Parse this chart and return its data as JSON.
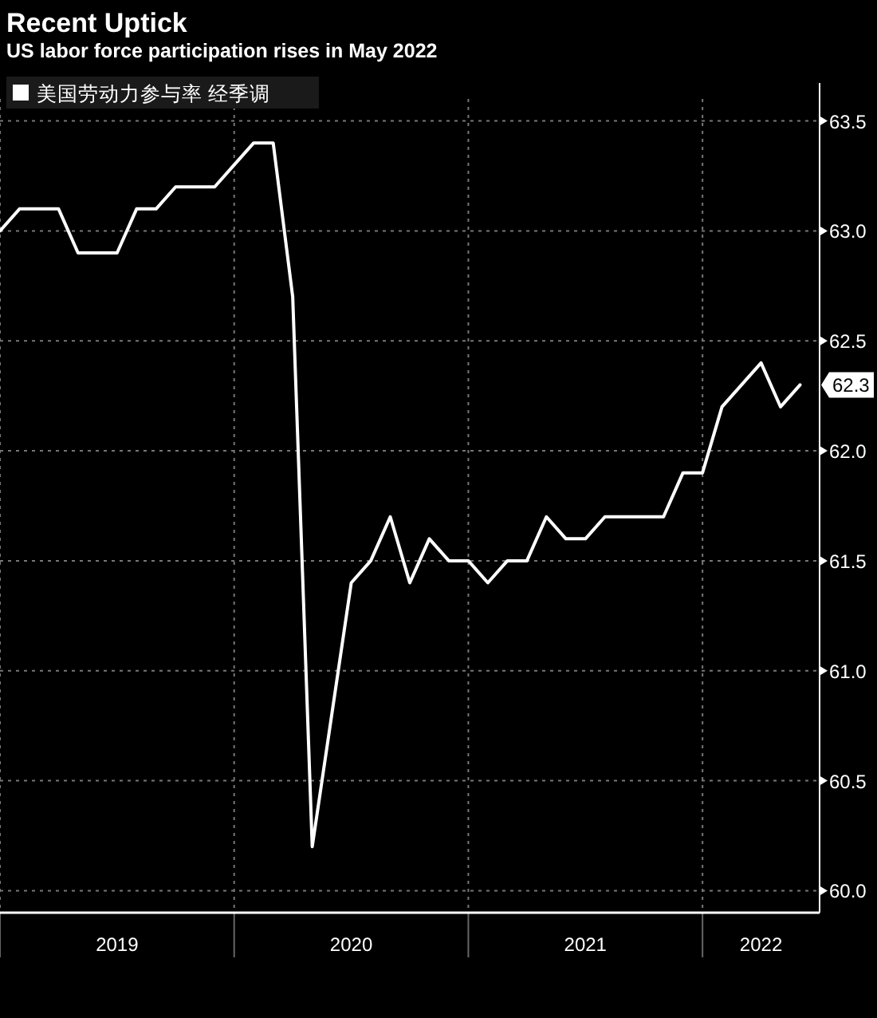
{
  "chart_data": {
    "type": "line",
    "title": "Recent Uptick",
    "subtitle": "US labor force participation rises in May 2022",
    "x": [
      "2018-12",
      "2019-01",
      "2019-02",
      "2019-03",
      "2019-04",
      "2019-05",
      "2019-06",
      "2019-07",
      "2019-08",
      "2019-09",
      "2019-10",
      "2019-11",
      "2019-12",
      "2020-01",
      "2020-02",
      "2020-03",
      "2020-04",
      "2020-05",
      "2020-06",
      "2020-07",
      "2020-08",
      "2020-09",
      "2020-10",
      "2020-11",
      "2020-12",
      "2021-01",
      "2021-02",
      "2021-03",
      "2021-04",
      "2021-05",
      "2021-06",
      "2021-07",
      "2021-08",
      "2021-09",
      "2021-10",
      "2021-11",
      "2021-12",
      "2022-01",
      "2022-02",
      "2022-03",
      "2022-04",
      "2022-05"
    ],
    "series": [
      {
        "name": "美国劳动力参与率 经季调",
        "color": "#ffffff",
        "values": [
          63.0,
          63.1,
          63.1,
          63.1,
          62.9,
          62.9,
          62.9,
          63.1,
          63.1,
          63.2,
          63.2,
          63.2,
          63.3,
          63.4,
          63.4,
          62.7,
          60.2,
          60.8,
          61.4,
          61.5,
          61.7,
          61.4,
          61.6,
          61.5,
          61.5,
          61.4,
          61.5,
          61.5,
          61.7,
          61.6,
          61.6,
          61.7,
          61.7,
          61.7,
          61.7,
          61.9,
          61.9,
          62.2,
          62.3,
          62.4,
          62.2,
          62.3
        ]
      }
    ],
    "xlim": [
      "2018-12",
      "2022-06"
    ],
    "xticks": [
      {
        "value": "2018-12",
        "label": null
      },
      {
        "value": "2019-06",
        "label": "2019"
      },
      {
        "value": "2019-12",
        "label": null
      },
      {
        "value": "2020-06",
        "label": "2020"
      },
      {
        "value": "2020-12",
        "label": null
      },
      {
        "value": "2021-06",
        "label": "2021"
      },
      {
        "value": "2021-12",
        "label": null
      },
      {
        "value": "2022-03",
        "label": "2022"
      }
    ],
    "ylim": [
      59.9,
      63.6
    ],
    "yticks": [
      {
        "value": 60,
        "label": "60.0"
      },
      {
        "value": 60.5,
        "label": "60.5"
      },
      {
        "value": 61,
        "label": "61.0"
      },
      {
        "value": 61.5,
        "label": "61.5"
      },
      {
        "value": 62,
        "label": "62.0"
      },
      {
        "value": 62.5,
        "label": "62.5"
      },
      {
        "value": 63,
        "label": "63.0"
      },
      {
        "value": 63.5,
        "label": "63.5"
      }
    ],
    "grid": true,
    "legend": "top left",
    "marker": "none",
    "line_style": "solid",
    "annotations": [
      {
        "text": "62.3",
        "x": "2022-05",
        "y": 62.3
      }
    ]
  }
}
